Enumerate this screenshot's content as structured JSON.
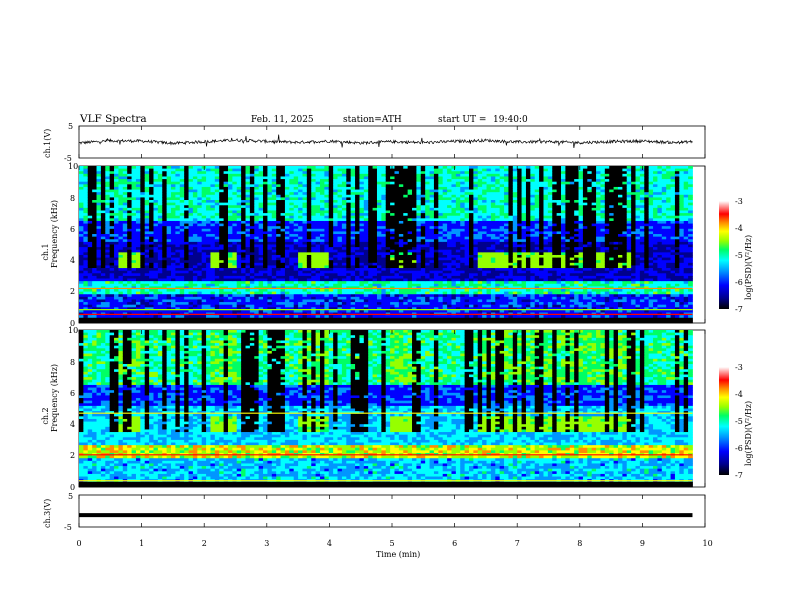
{
  "header": {
    "title": "VLF Spectra",
    "date": "Feb. 11, 2025",
    "station": "station=ATH",
    "start": "start UT =",
    "start_time": "19:40:0"
  },
  "chart_data": [
    {
      "type": "line",
      "panel": "ch1-waveform",
      "ylabel": "ch.1(V)",
      "ylim": [
        -5,
        5
      ],
      "y_ticks": [
        "5",
        "-5"
      ],
      "xlim": [
        0,
        10
      ],
      "x": [
        0,
        0.5,
        1,
        1.5,
        2,
        2.5,
        3,
        3.5,
        4,
        4.5,
        5,
        5.5,
        6,
        6.5,
        7,
        7.5,
        8,
        8.5,
        9,
        9.5,
        9.8
      ],
      "values": [
        -0.3,
        0.4,
        0.3,
        -0.4,
        0.1,
        0.6,
        0.2,
        -0.1,
        0.3,
        -0.3,
        0.1,
        -0.2,
        0.2,
        0.5,
        0.0,
        0.1,
        -0.2,
        0.1,
        0.3,
        -0.2,
        0.1
      ]
    },
    {
      "type": "heatmap",
      "panel": "ch1-spectrogram",
      "ylabel": "ch.1\nFrequency (kHz)",
      "ylabel_lines": [
        "ch.1",
        "Frequency (kHz)"
      ],
      "ylim": [
        0,
        10
      ],
      "y_ticks": [
        "0",
        "2",
        "4",
        "6",
        "8",
        "10"
      ],
      "xlim": [
        0,
        10
      ],
      "time_extent_min": 9.8,
      "colorbar_label": "log(PSD)(V²/Hz)",
      "colorbar_ticks": [
        "-3",
        "-4",
        "-5",
        "-6",
        "-7"
      ],
      "colorbar_range": [
        -7,
        -3
      ],
      "tone_intervals_min": [
        [
          0.6,
          1.0
        ],
        [
          2.1,
          2.5
        ],
        [
          3.5,
          4.0
        ],
        [
          5.0,
          5.4
        ],
        [
          6.4,
          8.8
        ]
      ],
      "tone_freq_khz": 4.0
    },
    {
      "type": "heatmap",
      "panel": "ch2-spectrogram",
      "ylabel": "ch.2\nFrequency (kHz)",
      "ylabel_lines": [
        "ch.2",
        "Frequency (kHz)"
      ],
      "ylim": [
        0,
        10
      ],
      "y_ticks": [
        "0",
        "2",
        "4",
        "6",
        "8",
        "10"
      ],
      "xlim": [
        0,
        10
      ],
      "time_extent_min": 9.8,
      "colorbar_label": "log(PSD)(V²/Hz)",
      "colorbar_ticks": [
        "-3",
        "-4",
        "-5",
        "-6",
        "-7"
      ],
      "colorbar_range": [
        -7,
        -3
      ],
      "tone_intervals_min": [
        [
          0.6,
          1.0
        ],
        [
          2.1,
          2.5
        ],
        [
          3.5,
          4.0
        ],
        [
          5.0,
          5.4
        ],
        [
          6.4,
          8.8
        ]
      ],
      "tone_freq_khz": 4.0
    },
    {
      "type": "line",
      "panel": "ch3-waveform",
      "ylabel": "ch.3(V)",
      "ylim": [
        -5,
        5
      ],
      "y_ticks": [
        "5",
        "-5"
      ],
      "xlim": [
        0,
        10
      ],
      "x": [
        0,
        9.8
      ],
      "values": [
        -1.3,
        -1.3
      ]
    }
  ],
  "xaxis": {
    "label": "Time (min)",
    "ticks": [
      "0",
      "1",
      "2",
      "3",
      "4",
      "5",
      "6",
      "7",
      "8",
      "9",
      "10"
    ]
  },
  "colors": {
    "colormap": [
      "#000000",
      "#00008c",
      "#0000ff",
      "#0096ff",
      "#00ffff",
      "#00ff64",
      "#96ff00",
      "#ffff00",
      "#ff8c00",
      "#ff0000",
      "#ffffff"
    ]
  }
}
